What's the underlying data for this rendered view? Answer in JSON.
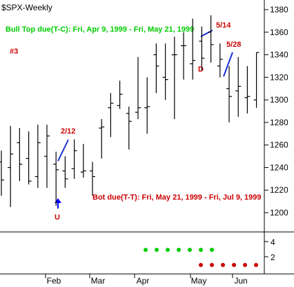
{
  "chart_data": {
    "type": "ohlc",
    "title": "$SPX-Weekly",
    "ylim": [
      1190,
      1385
    ],
    "yticks": [
      1200,
      1220,
      1240,
      1260,
      1280,
      1300,
      1320,
      1340,
      1360,
      1380
    ],
    "xticks": [
      "Feb",
      "Mar",
      "Apr",
      "May",
      "Jun"
    ],
    "grid": false,
    "bars": [
      {
        "x": "1998-12-28",
        "open": 1245,
        "high": 1255,
        "low": 1215,
        "close": 1229
      },
      {
        "x": "1999-01-04",
        "open": 1240,
        "high": 1277,
        "low": 1205,
        "close": 1252
      },
      {
        "x": "1999-01-11",
        "open": 1262,
        "high": 1275,
        "low": 1228,
        "close": 1243
      },
      {
        "x": "1999-01-18",
        "open": 1248,
        "high": 1272,
        "low": 1225,
        "close": 1228
      },
      {
        "x": "1999-01-25",
        "open": 1232,
        "high": 1278,
        "low": 1222,
        "close": 1262
      },
      {
        "x": "1999-02-01",
        "open": 1250,
        "high": 1278,
        "low": 1222,
        "close": 1268
      },
      {
        "x": "1999-02-08",
        "open": 1243,
        "high": 1254,
        "low": 1206,
        "close": 1238
      },
      {
        "x": "1999-02-15",
        "open": 1237,
        "high": 1250,
        "low": 1222,
        "close": 1230
      },
      {
        "x": "1999-02-22",
        "open": 1239,
        "high": 1265,
        "low": 1230,
        "close": 1255
      },
      {
        "x": "1999-03-01",
        "open": 1236,
        "high": 1261,
        "low": 1231,
        "close": 1237
      },
      {
        "x": "1999-03-08",
        "open": 1237,
        "high": 1245,
        "low": 1215,
        "close": 1232
      },
      {
        "x": "1999-03-15",
        "open": 1275,
        "high": 1283,
        "low": 1248,
        "close": 1276
      },
      {
        "x": "1999-03-22",
        "open": 1293,
        "high": 1306,
        "low": 1267,
        "close": 1297
      },
      {
        "x": "1999-03-29",
        "open": 1295,
        "high": 1317,
        "low": 1292,
        "close": 1305
      },
      {
        "x": "1999-04-05",
        "open": 1288,
        "high": 1294,
        "low": 1256,
        "close": 1281
      },
      {
        "x": "1999-04-12",
        "open": 1289,
        "high": 1338,
        "low": 1283,
        "close": 1293
      },
      {
        "x": "1999-04-19",
        "open": 1293,
        "high": 1320,
        "low": 1270,
        "close": 1294
      },
      {
        "x": "1999-04-26",
        "open": 1340,
        "high": 1350,
        "low": 1306,
        "close": 1330
      },
      {
        "x": "1999-05-03",
        "open": 1320,
        "high": 1350,
        "low": 1300,
        "close": 1318
      },
      {
        "x": "1999-05-10",
        "open": 1340,
        "high": 1356,
        "low": 1283,
        "close": 1340
      },
      {
        "x": "1999-05-17",
        "open": 1348,
        "high": 1360,
        "low": 1318,
        "close": 1348
      },
      {
        "x": "1999-05-24",
        "open": 1332,
        "high": 1372,
        "low": 1318,
        "close": 1335
      },
      {
        "x": "1999-05-31",
        "open": 1352,
        "high": 1365,
        "low": 1326,
        "close": 1337
      },
      {
        "x": "1999-06-07",
        "open": 1360,
        "high": 1375,
        "low": 1333,
        "close": 1349
      },
      {
        "x": "1999-06-14",
        "open": 1330,
        "high": 1350,
        "low": 1320,
        "close": 1336
      },
      {
        "x": "1999-06-21",
        "open": 1310,
        "high": 1330,
        "low": 1280,
        "close": 1303
      },
      {
        "x": "1999-06-28",
        "open": 1308,
        "high": 1338,
        "low": 1285,
        "close": 1312
      },
      {
        "x": "1999-07-05",
        "open": 1302,
        "high": 1330,
        "low": 1288,
        "close": 1303
      },
      {
        "x": "1999-07-12",
        "open": 1300,
        "high": 1342,
        "low": 1293,
        "close": 1342
      }
    ],
    "annotations": [
      {
        "text": "Bull Top due(T-C): Fri, Apr 9, 1999 - Fri, May 21, 1999",
        "color": "#00cc00"
      },
      {
        "text": "#3",
        "color": "#cc0000"
      },
      {
        "text": "2/12",
        "color": "#cc0000"
      },
      {
        "text": "5/14",
        "color": "#cc0000"
      },
      {
        "text": "5/28",
        "color": "#cc0000"
      },
      {
        "text": "D",
        "color": "#cc0000"
      },
      {
        "text": "U",
        "color": "#cc0000"
      },
      {
        "text": "Bot due(T-T): Fri, May 21, 1999 - Fri, Jul 9, 1999",
        "color": "#cc0000"
      }
    ],
    "indicator": {
      "yticks": [
        4,
        2
      ],
      "green_dots": 7,
      "red_dots": 6
    },
    "colors": {
      "bars": "#000000",
      "green": "#00cc00",
      "red": "#cc0000",
      "line": "#1a2fcf",
      "arrow": "#0000ff"
    }
  }
}
